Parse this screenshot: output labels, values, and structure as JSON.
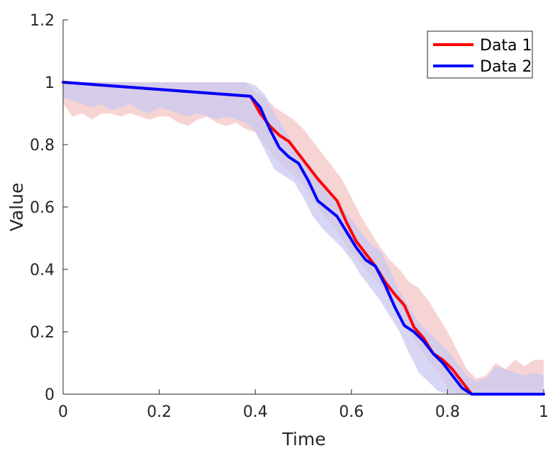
{
  "chart_data": {
    "type": "line",
    "title": "",
    "xlabel": "Time",
    "ylabel": "Value",
    "xlim": [
      0,
      1
    ],
    "ylim": [
      0,
      1.2
    ],
    "xticks": [
      0,
      0.2,
      0.4,
      0.6,
      0.8,
      1
    ],
    "yticks": [
      0,
      0.2,
      0.4,
      0.6,
      0.8,
      1,
      1.2
    ],
    "xtick_labels": [
      "0",
      "0.2",
      "0.4",
      "0.6",
      "0.8",
      "1"
    ],
    "ytick_labels": [
      "0",
      "0.2",
      "0.4",
      "0.6",
      "0.8",
      "1",
      "1.2"
    ],
    "grid": false,
    "legend_position": "top-right",
    "series": [
      {
        "name": "Data 1",
        "color": "#ff0000",
        "fill_color": "#f4c6c6",
        "x": [
          0,
          0.39,
          0.41,
          0.43,
          0.45,
          0.47,
          0.49,
          0.51,
          0.53,
          0.55,
          0.57,
          0.59,
          0.61,
          0.63,
          0.65,
          0.67,
          0.69,
          0.71,
          0.73,
          0.75,
          0.77,
          0.79,
          0.81,
          0.83,
          0.85,
          1
        ],
        "y": [
          1.0,
          0.955,
          0.9,
          0.86,
          0.83,
          0.81,
          0.77,
          0.73,
          0.69,
          0.655,
          0.62,
          0.55,
          0.49,
          0.45,
          0.41,
          0.36,
          0.32,
          0.285,
          0.215,
          0.18,
          0.13,
          0.11,
          0.08,
          0.04,
          0.0,
          0.0
        ],
        "band_x": [
          0,
          0.02,
          0.04,
          0.06,
          0.08,
          0.1,
          0.12,
          0.14,
          0.16,
          0.18,
          0.2,
          0.22,
          0.24,
          0.26,
          0.28,
          0.3,
          0.32,
          0.34,
          0.36,
          0.38,
          0.4,
          0.42,
          0.44,
          0.46,
          0.48,
          0.5,
          0.52,
          0.54,
          0.56,
          0.58,
          0.6,
          0.62,
          0.64,
          0.66,
          0.68,
          0.7,
          0.72,
          0.74,
          0.76,
          0.78,
          0.8,
          0.82,
          0.84,
          0.86,
          0.88,
          0.9,
          0.92,
          0.94,
          0.96,
          0.98,
          1.0
        ],
        "band_lower": [
          0.93,
          0.89,
          0.9,
          0.88,
          0.9,
          0.9,
          0.89,
          0.9,
          0.89,
          0.88,
          0.89,
          0.89,
          0.87,
          0.86,
          0.88,
          0.89,
          0.87,
          0.86,
          0.87,
          0.85,
          0.84,
          0.8,
          0.76,
          0.73,
          0.7,
          0.67,
          0.62,
          0.58,
          0.54,
          0.5,
          0.45,
          0.42,
          0.38,
          0.35,
          0.3,
          0.25,
          0.2,
          0.15,
          0.11,
          0.07,
          0.02,
          0.0,
          0.0,
          0.0,
          0.0,
          0.0,
          0.0,
          0.0,
          0.0,
          0.0,
          0.0
        ],
        "band_upper": [
          1.0,
          1.0,
          1.0,
          1.0,
          1.0,
          1.0,
          1.0,
          1.0,
          1.0,
          1.0,
          1.0,
          1.0,
          1.0,
          1.0,
          1.0,
          1.0,
          1.0,
          1.0,
          1.0,
          1.0,
          0.97,
          0.95,
          0.92,
          0.9,
          0.88,
          0.85,
          0.81,
          0.77,
          0.73,
          0.69,
          0.63,
          0.57,
          0.52,
          0.47,
          0.43,
          0.4,
          0.36,
          0.34,
          0.3,
          0.25,
          0.2,
          0.14,
          0.08,
          0.05,
          0.06,
          0.1,
          0.08,
          0.11,
          0.09,
          0.11,
          0.11
        ]
      },
      {
        "name": "Data 2",
        "color": "#0000ff",
        "fill_color": "#c9c9f2",
        "x": [
          0,
          0.39,
          0.41,
          0.43,
          0.45,
          0.47,
          0.49,
          0.51,
          0.53,
          0.55,
          0.57,
          0.59,
          0.61,
          0.63,
          0.65,
          0.67,
          0.69,
          0.71,
          0.73,
          0.75,
          0.77,
          0.79,
          0.81,
          0.83,
          0.85,
          1
        ],
        "y": [
          1.0,
          0.955,
          0.92,
          0.85,
          0.79,
          0.76,
          0.74,
          0.685,
          0.62,
          0.595,
          0.57,
          0.52,
          0.47,
          0.43,
          0.41,
          0.35,
          0.28,
          0.22,
          0.2,
          0.17,
          0.13,
          0.1,
          0.06,
          0.02,
          0.0,
          0.0
        ],
        "band_x": [
          0,
          0.02,
          0.04,
          0.06,
          0.08,
          0.1,
          0.12,
          0.14,
          0.16,
          0.18,
          0.2,
          0.22,
          0.24,
          0.26,
          0.28,
          0.3,
          0.32,
          0.34,
          0.36,
          0.38,
          0.4,
          0.42,
          0.44,
          0.46,
          0.48,
          0.5,
          0.52,
          0.54,
          0.56,
          0.58,
          0.6,
          0.62,
          0.64,
          0.66,
          0.68,
          0.7,
          0.72,
          0.74,
          0.76,
          0.78,
          0.8,
          0.82,
          0.84,
          0.86,
          0.88,
          0.9,
          0.92,
          0.94,
          0.96,
          0.98,
          1.0
        ],
        "band_lower": [
          0.95,
          0.94,
          0.93,
          0.92,
          0.93,
          0.91,
          0.92,
          0.93,
          0.91,
          0.9,
          0.92,
          0.91,
          0.9,
          0.89,
          0.9,
          0.89,
          0.88,
          0.89,
          0.88,
          0.87,
          0.84,
          0.78,
          0.72,
          0.7,
          0.68,
          0.63,
          0.57,
          0.53,
          0.5,
          0.47,
          0.43,
          0.38,
          0.34,
          0.3,
          0.25,
          0.2,
          0.13,
          0.07,
          0.04,
          0.01,
          0.0,
          0.0,
          0.0,
          0.0,
          0.0,
          0.0,
          0.0,
          0.0,
          0.0,
          0.0,
          0.0
        ],
        "band_upper": [
          1.0,
          1.0,
          1.0,
          1.0,
          1.0,
          1.0,
          1.0,
          1.0,
          1.0,
          1.0,
          1.0,
          1.0,
          1.0,
          1.0,
          1.0,
          1.0,
          1.0,
          1.0,
          1.0,
          1.0,
          0.99,
          0.96,
          0.9,
          0.85,
          0.8,
          0.76,
          0.72,
          0.68,
          0.64,
          0.6,
          0.56,
          0.52,
          0.48,
          0.46,
          0.4,
          0.33,
          0.28,
          0.23,
          0.2,
          0.17,
          0.14,
          0.1,
          0.06,
          0.04,
          0.05,
          0.09,
          0.08,
          0.07,
          0.06,
          0.07,
          0.06
        ]
      }
    ]
  }
}
